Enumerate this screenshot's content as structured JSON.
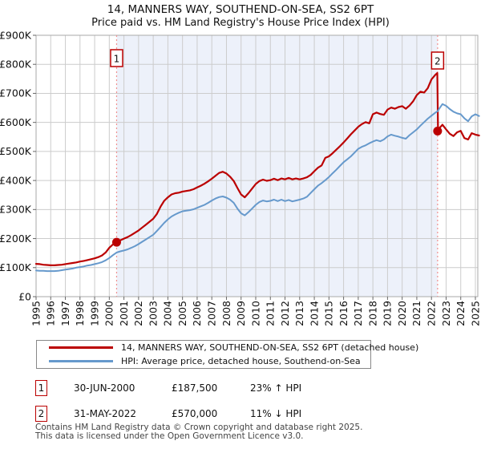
{
  "title": "14, MANNERS WAY, SOUTHEND-ON-SEA, SS2 6PT",
  "subtitle": "Price paid vs. HM Land Registry's House Price Index (HPI)",
  "colors": {
    "price_paid": "#bb0000",
    "hpi": "#6699cc",
    "sale_guide_line": "#f09090",
    "grid": "#cccccc",
    "plot_border": "#aaaaaa",
    "shaded_region": "#edf1fa",
    "marker_box_border": "#bb0000"
  },
  "legend": [
    {
      "label": "14, MANNERS WAY, SOUTHEND-ON-SEA, SS2 6PT (detached house)",
      "color": "#bb0000"
    },
    {
      "label": "HPI: Average price, detached house, Southend-on-Sea",
      "color": "#6699cc"
    }
  ],
  "sales": [
    {
      "marker": "1",
      "date": "30-JUN-2000",
      "price": "£187,500",
      "hpi_diff": "23% ↑ HPI",
      "x_year": 2000.5,
      "value_k": 187.5
    },
    {
      "marker": "2",
      "date": "31-MAY-2022",
      "price": "£570,000",
      "hpi_diff": "11% ↓ HPI",
      "x_year": 2022.42,
      "value_k": 570
    }
  ],
  "footer": [
    "Contains HM Land Registry data © Crown copyright and database right 2025.",
    "This data is licensed under the Open Government Licence v3.0."
  ],
  "chart_data": {
    "type": "line",
    "title": "14, MANNERS WAY, SOUTHEND-ON-SEA, SS2 6PT",
    "subtitle": "Price paid vs. HM Land Registry's House Price Index (HPI)",
    "xlabel": "",
    "ylabel": "",
    "xlim": [
      1995,
      2025.3
    ],
    "ylim_k": [
      0,
      900
    ],
    "grid": true,
    "legend_position": "bottom",
    "y_ticks_k": [
      0,
      100,
      200,
      300,
      400,
      500,
      600,
      700,
      800,
      900
    ],
    "y_tick_labels": [
      "£0",
      "£100K",
      "£200K",
      "£300K",
      "£400K",
      "£500K",
      "£600K",
      "£700K",
      "£800K",
      "£900K"
    ],
    "x_ticks": [
      1995,
      1996,
      1997,
      1998,
      1999,
      2000,
      2001,
      2002,
      2003,
      2004,
      2005,
      2006,
      2007,
      2008,
      2009,
      2010,
      2011,
      2012,
      2013,
      2014,
      2015,
      2016,
      2017,
      2018,
      2019,
      2020,
      2021,
      2022,
      2023,
      2024,
      2025
    ],
    "shaded_region_years": [
      2000.5,
      2022.42
    ],
    "series": [
      {
        "name": "14, MANNERS WAY, SOUTHEND-ON-SEA, SS2 6PT (detached house)",
        "color": "#bb0000",
        "width": 2.2,
        "points_year_valuek": [
          [
            1995.0,
            113
          ],
          [
            1995.25,
            112
          ],
          [
            1995.5,
            110
          ],
          [
            1995.75,
            109
          ],
          [
            1996.0,
            108
          ],
          [
            1996.25,
            108
          ],
          [
            1996.5,
            109
          ],
          [
            1996.75,
            110
          ],
          [
            1997.0,
            112
          ],
          [
            1997.25,
            114
          ],
          [
            1997.5,
            116
          ],
          [
            1997.75,
            118
          ],
          [
            1998.0,
            121
          ],
          [
            1998.25,
            123
          ],
          [
            1998.5,
            126
          ],
          [
            1998.75,
            129
          ],
          [
            1999.0,
            132
          ],
          [
            1999.25,
            136
          ],
          [
            1999.5,
            142
          ],
          [
            1999.75,
            152
          ],
          [
            2000.0,
            168
          ],
          [
            2000.25,
            180
          ],
          [
            2000.5,
            188
          ],
          [
            2000.75,
            194
          ],
          [
            2001.0,
            200
          ],
          [
            2001.25,
            205
          ],
          [
            2001.5,
            212
          ],
          [
            2001.75,
            220
          ],
          [
            2002.0,
            228
          ],
          [
            2002.25,
            238
          ],
          [
            2002.5,
            248
          ],
          [
            2002.75,
            258
          ],
          [
            2003.0,
            268
          ],
          [
            2003.25,
            285
          ],
          [
            2003.5,
            310
          ],
          [
            2003.75,
            330
          ],
          [
            2004.0,
            342
          ],
          [
            2004.25,
            352
          ],
          [
            2004.5,
            356
          ],
          [
            2004.75,
            358
          ],
          [
            2005.0,
            362
          ],
          [
            2005.25,
            364
          ],
          [
            2005.5,
            366
          ],
          [
            2005.75,
            370
          ],
          [
            2006.0,
            376
          ],
          [
            2006.25,
            382
          ],
          [
            2006.5,
            389
          ],
          [
            2006.75,
            397
          ],
          [
            2007.0,
            406
          ],
          [
            2007.25,
            416
          ],
          [
            2007.5,
            426
          ],
          [
            2007.75,
            430
          ],
          [
            2008.0,
            424
          ],
          [
            2008.25,
            413
          ],
          [
            2008.5,
            398
          ],
          [
            2008.75,
            374
          ],
          [
            2009.0,
            352
          ],
          [
            2009.25,
            342
          ],
          [
            2009.5,
            356
          ],
          [
            2009.75,
            372
          ],
          [
            2010.0,
            388
          ],
          [
            2010.25,
            398
          ],
          [
            2010.5,
            403
          ],
          [
            2010.75,
            399
          ],
          [
            2011.0,
            401
          ],
          [
            2011.25,
            406
          ],
          [
            2011.5,
            401
          ],
          [
            2011.75,
            407
          ],
          [
            2012.0,
            404
          ],
          [
            2012.25,
            409
          ],
          [
            2012.5,
            404
          ],
          [
            2012.75,
            407
          ],
          [
            2013.0,
            404
          ],
          [
            2013.25,
            407
          ],
          [
            2013.5,
            411
          ],
          [
            2013.75,
            419
          ],
          [
            2014.0,
            432
          ],
          [
            2014.25,
            444
          ],
          [
            2014.5,
            452
          ],
          [
            2014.75,
            478
          ],
          [
            2015.0,
            483
          ],
          [
            2015.25,
            494
          ],
          [
            2015.5,
            506
          ],
          [
            2015.75,
            518
          ],
          [
            2016.0,
            531
          ],
          [
            2016.25,
            545
          ],
          [
            2016.5,
            559
          ],
          [
            2016.75,
            572
          ],
          [
            2017.0,
            585
          ],
          [
            2017.25,
            594
          ],
          [
            2017.5,
            601
          ],
          [
            2017.75,
            597
          ],
          [
            2018.0,
            628
          ],
          [
            2018.25,
            634
          ],
          [
            2018.5,
            629
          ],
          [
            2018.75,
            626
          ],
          [
            2019.0,
            644
          ],
          [
            2019.25,
            651
          ],
          [
            2019.5,
            647
          ],
          [
            2019.75,
            653
          ],
          [
            2020.0,
            656
          ],
          [
            2020.25,
            647
          ],
          [
            2020.5,
            658
          ],
          [
            2020.75,
            673
          ],
          [
            2021.0,
            694
          ],
          [
            2021.25,
            706
          ],
          [
            2021.5,
            703
          ],
          [
            2021.75,
            718
          ],
          [
            2022.0,
            748
          ],
          [
            2022.25,
            763
          ],
          [
            2022.4,
            770
          ],
          [
            2022.45,
            570
          ],
          [
            2022.5,
            578
          ],
          [
            2022.75,
            592
          ],
          [
            2023.0,
            576
          ],
          [
            2023.25,
            561
          ],
          [
            2023.5,
            553
          ],
          [
            2023.75,
            566
          ],
          [
            2024.0,
            571
          ],
          [
            2024.25,
            546
          ],
          [
            2024.5,
            541
          ],
          [
            2024.75,
            563
          ],
          [
            2025.0,
            558
          ],
          [
            2025.25,
            555
          ]
        ]
      },
      {
        "name": "HPI: Average price, detached house, Southend-on-Sea",
        "color": "#6699cc",
        "width": 2,
        "points_year_valuek": [
          [
            1995.0,
            90
          ],
          [
            1995.25,
            89
          ],
          [
            1995.5,
            89
          ],
          [
            1995.75,
            88
          ],
          [
            1996.0,
            88
          ],
          [
            1996.25,
            88
          ],
          [
            1996.5,
            89
          ],
          [
            1996.75,
            91
          ],
          [
            1997.0,
            93
          ],
          [
            1997.25,
            95
          ],
          [
            1997.5,
            97
          ],
          [
            1997.75,
            100
          ],
          [
            1998.0,
            102
          ],
          [
            1998.25,
            104
          ],
          [
            1998.5,
            107
          ],
          [
            1998.75,
            109
          ],
          [
            1999.0,
            112
          ],
          [
            1999.25,
            115
          ],
          [
            1999.5,
            119
          ],
          [
            1999.75,
            125
          ],
          [
            2000.0,
            133
          ],
          [
            2000.25,
            143
          ],
          [
            2000.5,
            152
          ],
          [
            2000.75,
            156
          ],
          [
            2001.0,
            159
          ],
          [
            2001.25,
            163
          ],
          [
            2001.5,
            168
          ],
          [
            2001.75,
            174
          ],
          [
            2002.0,
            181
          ],
          [
            2002.25,
            189
          ],
          [
            2002.5,
            197
          ],
          [
            2002.75,
            205
          ],
          [
            2003.0,
            213
          ],
          [
            2003.25,
            226
          ],
          [
            2003.5,
            240
          ],
          [
            2003.75,
            254
          ],
          [
            2004.0,
            266
          ],
          [
            2004.25,
            276
          ],
          [
            2004.5,
            283
          ],
          [
            2004.75,
            289
          ],
          [
            2005.0,
            294
          ],
          [
            2005.25,
            296
          ],
          [
            2005.5,
            298
          ],
          [
            2005.75,
            301
          ],
          [
            2006.0,
            306
          ],
          [
            2006.25,
            311
          ],
          [
            2006.5,
            316
          ],
          [
            2006.75,
            323
          ],
          [
            2007.0,
            331
          ],
          [
            2007.25,
            338
          ],
          [
            2007.5,
            343
          ],
          [
            2007.75,
            345
          ],
          [
            2008.0,
            341
          ],
          [
            2008.25,
            334
          ],
          [
            2008.5,
            323
          ],
          [
            2008.75,
            303
          ],
          [
            2009.0,
            287
          ],
          [
            2009.25,
            280
          ],
          [
            2009.5,
            291
          ],
          [
            2009.75,
            303
          ],
          [
            2010.0,
            316
          ],
          [
            2010.25,
            326
          ],
          [
            2010.5,
            331
          ],
          [
            2010.75,
            328
          ],
          [
            2011.0,
            330
          ],
          [
            2011.25,
            334
          ],
          [
            2011.5,
            329
          ],
          [
            2011.75,
            334
          ],
          [
            2012.0,
            329
          ],
          [
            2012.25,
            333
          ],
          [
            2012.5,
            328
          ],
          [
            2012.75,
            331
          ],
          [
            2013.0,
            334
          ],
          [
            2013.25,
            338
          ],
          [
            2013.5,
            344
          ],
          [
            2013.75,
            357
          ],
          [
            2014.0,
            370
          ],
          [
            2014.25,
            382
          ],
          [
            2014.5,
            391
          ],
          [
            2014.75,
            401
          ],
          [
            2015.0,
            412
          ],
          [
            2015.25,
            425
          ],
          [
            2015.5,
            437
          ],
          [
            2015.75,
            450
          ],
          [
            2016.0,
            463
          ],
          [
            2016.25,
            473
          ],
          [
            2016.5,
            483
          ],
          [
            2016.75,
            496
          ],
          [
            2017.0,
            509
          ],
          [
            2017.25,
            516
          ],
          [
            2017.5,
            521
          ],
          [
            2017.75,
            528
          ],
          [
            2018.0,
            534
          ],
          [
            2018.25,
            539
          ],
          [
            2018.5,
            535
          ],
          [
            2018.75,
            541
          ],
          [
            2019.0,
            552
          ],
          [
            2019.25,
            558
          ],
          [
            2019.5,
            554
          ],
          [
            2019.75,
            551
          ],
          [
            2020.0,
            547
          ],
          [
            2020.25,
            544
          ],
          [
            2020.5,
            556
          ],
          [
            2020.75,
            566
          ],
          [
            2021.0,
            576
          ],
          [
            2021.25,
            589
          ],
          [
            2021.5,
            601
          ],
          [
            2021.75,
            613
          ],
          [
            2022.0,
            623
          ],
          [
            2022.25,
            633
          ],
          [
            2022.4,
            638
          ],
          [
            2022.45,
            640
          ],
          [
            2022.5,
            645
          ],
          [
            2022.75,
            663
          ],
          [
            2023.0,
            657
          ],
          [
            2023.25,
            646
          ],
          [
            2023.5,
            637
          ],
          [
            2023.75,
            631
          ],
          [
            2024.0,
            628
          ],
          [
            2024.25,
            614
          ],
          [
            2024.5,
            604
          ],
          [
            2024.75,
            621
          ],
          [
            2025.0,
            628
          ],
          [
            2025.25,
            622
          ]
        ]
      }
    ]
  }
}
